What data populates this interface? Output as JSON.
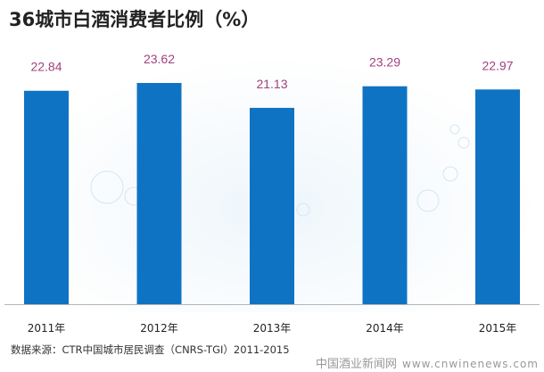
{
  "chart_data": {
    "type": "bar",
    "title": "36城市白酒消费者比例（%）",
    "categories": [
      "2011年",
      "2012年",
      "2013年",
      "2014年",
      "2015年"
    ],
    "values": [
      22.84,
      23.62,
      21.13,
      23.29,
      22.97
    ],
    "value_labels": [
      "22.84",
      "23.62",
      "21.13",
      "23.29",
      "22.97"
    ],
    "xlabel": "",
    "ylabel": "",
    "ylim": [
      1.5,
      25
    ],
    "grid": false,
    "bar_color": "#0f73c4",
    "label_color": "#a0407f"
  },
  "source": "数据来源：CTR中国城市居民调查（CNRS-TGI）2011-2015",
  "watermark": {
    "name": "中国酒业新闻网",
    "url": "www.cnwinenews.com"
  }
}
